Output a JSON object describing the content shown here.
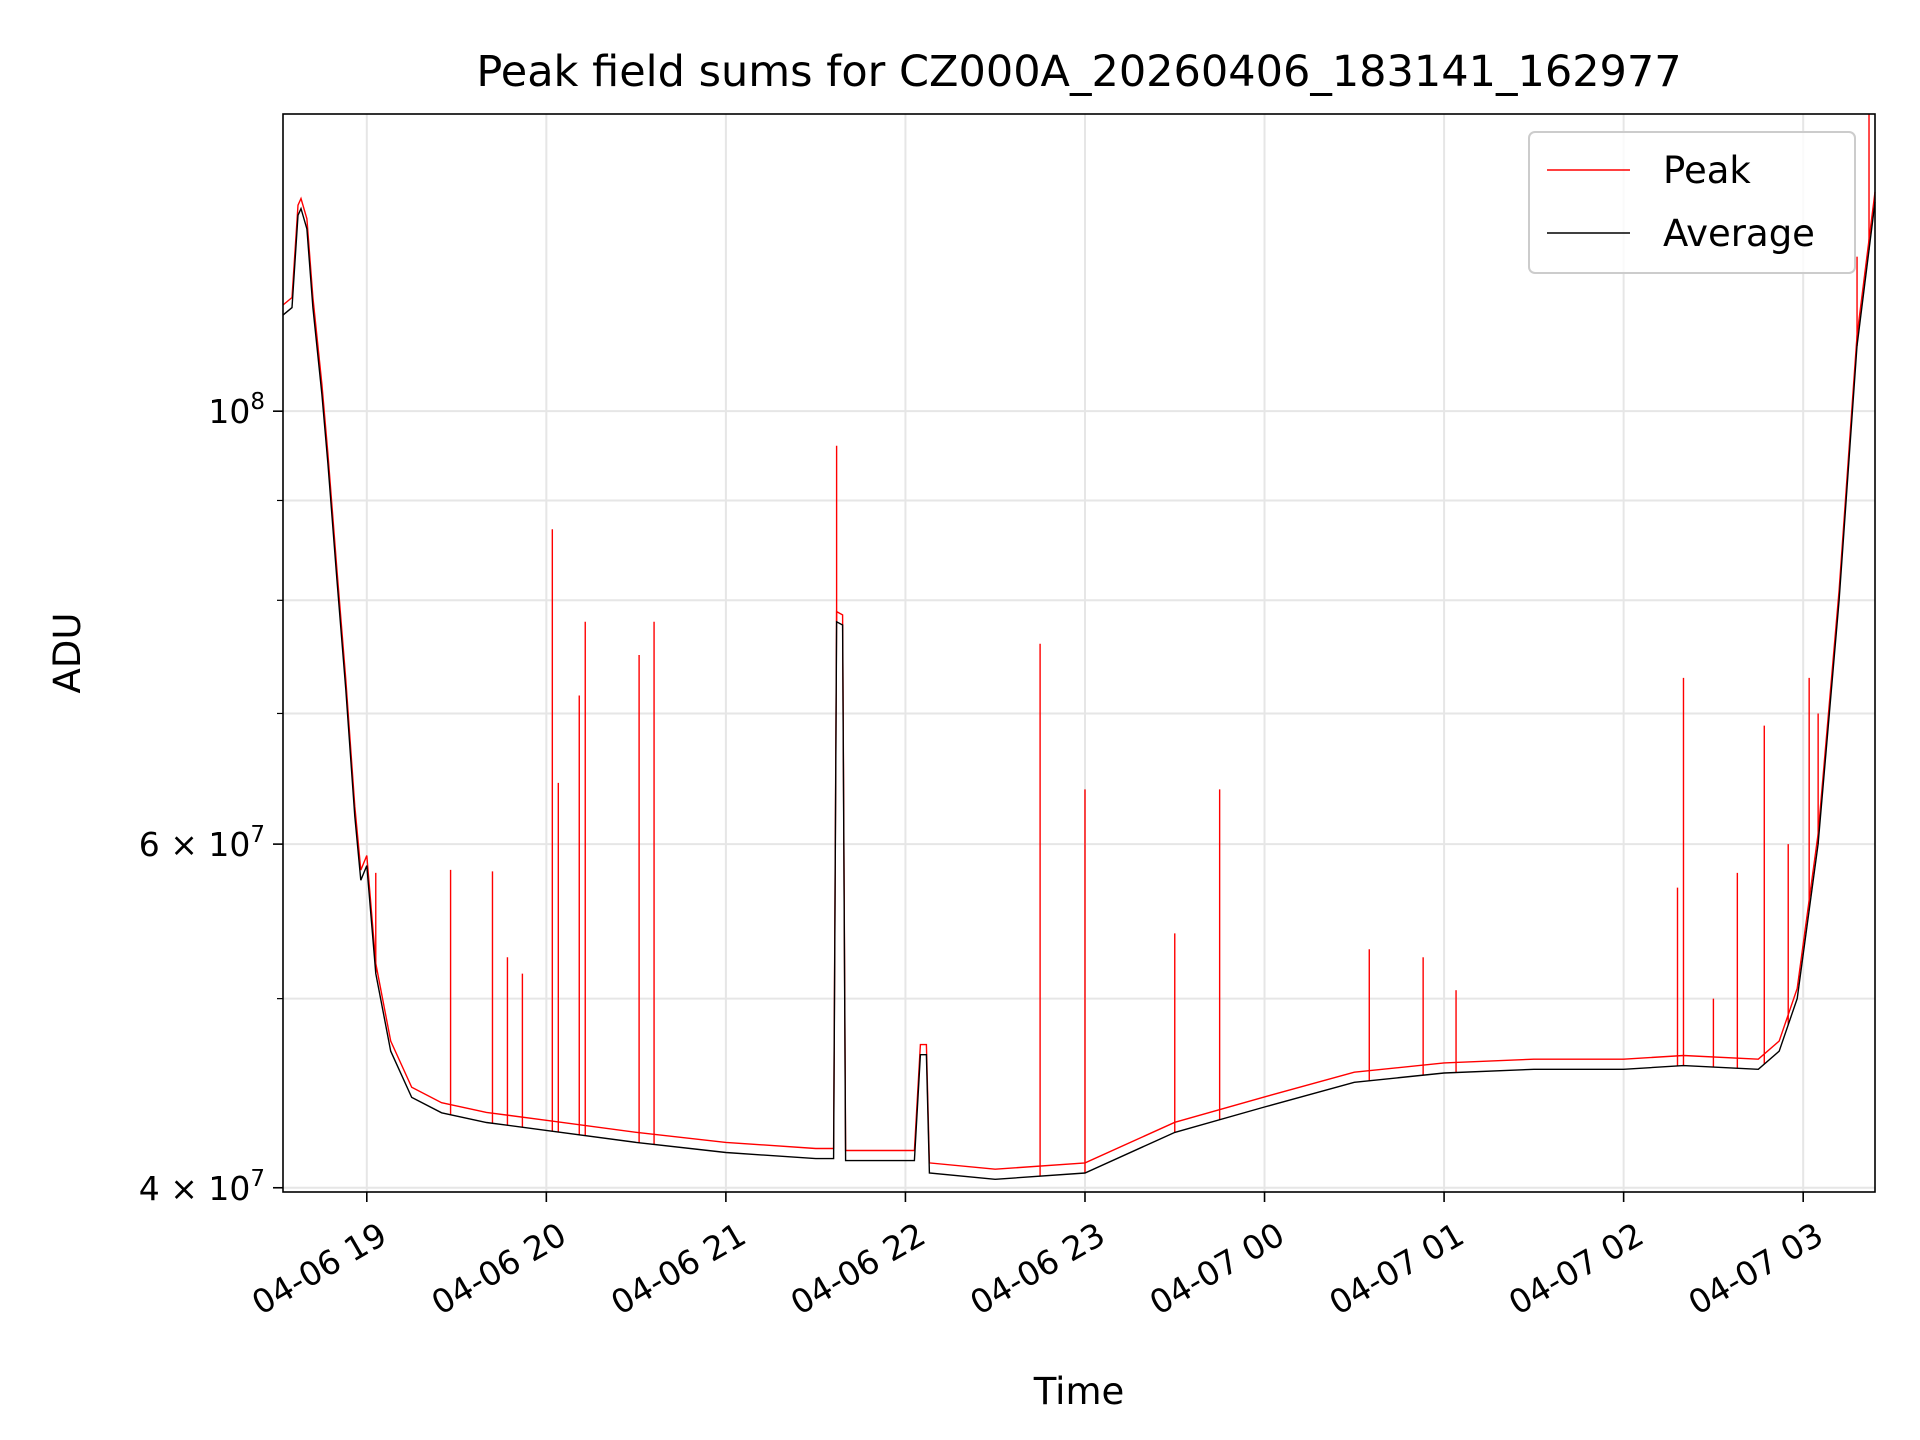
{
  "chart_data": {
    "type": "line",
    "title": "Peak field sums for CZ000A_20260406_183141_162977",
    "xlabel": "Time",
    "ylabel": "ADU",
    "x_axis": "datetime",
    "y_scale": "log",
    "xlim": [
      "2026-04-06 18:32",
      "2026-04-07 03:24"
    ],
    "ylim": [
      39800000,
      142000000
    ],
    "grid": true,
    "legend_position": "upper right",
    "x_ticks": [
      {
        "t": "2026-04-06 19:00",
        "label": "04-06 19"
      },
      {
        "t": "2026-04-06 20:00",
        "label": "04-06 20"
      },
      {
        "t": "2026-04-06 21:00",
        "label": "04-06 21"
      },
      {
        "t": "2026-04-06 22:00",
        "label": "04-06 22"
      },
      {
        "t": "2026-04-06 23:00",
        "label": "04-06 23"
      },
      {
        "t": "2026-04-07 00:00",
        "label": "04-07 00"
      },
      {
        "t": "2026-04-07 01:00",
        "label": "04-07 01"
      },
      {
        "t": "2026-04-07 02:00",
        "label": "04-07 02"
      },
      {
        "t": "2026-04-07 03:00",
        "label": "04-07 03"
      }
    ],
    "y_ticks_major": [
      {
        "value": 40000000,
        "base": "4 × 10",
        "exp": "7"
      },
      {
        "value": 60000000,
        "base": "6 × 10",
        "exp": "7"
      },
      {
        "value": 100000000,
        "base": "10",
        "exp": "8"
      }
    ],
    "y_ticks_minor": [
      50000000,
      70000000,
      80000000,
      90000000
    ],
    "series": [
      {
        "name": "Average",
        "color": "#000000",
        "points": [
          [
            "2026-04-06 18:32",
            112000000
          ],
          [
            "2026-04-06 18:35",
            113000000
          ],
          [
            "2026-04-06 18:37",
            126000000
          ],
          [
            "2026-04-06 18:38",
            127000000
          ],
          [
            "2026-04-06 18:40",
            124000000
          ],
          [
            "2026-04-06 18:42",
            113000000
          ],
          [
            "2026-04-06 18:45",
            102000000
          ],
          [
            "2026-04-06 18:47",
            94000000
          ],
          [
            "2026-04-06 18:50",
            82000000
          ],
          [
            "2026-04-06 18:53",
            72000000
          ],
          [
            "2026-04-06 18:56",
            62000000
          ],
          [
            "2026-04-06 18:58",
            57500000
          ],
          [
            "2026-04-06 19:00",
            58500000
          ],
          [
            "2026-04-06 19:03",
            51500000
          ],
          [
            "2026-04-06 19:08",
            47000000
          ],
          [
            "2026-04-06 19:15",
            44500000
          ],
          [
            "2026-04-06 19:25",
            43700000
          ],
          [
            "2026-04-06 19:40",
            43200000
          ],
          [
            "2026-04-06 20:00",
            42800000
          ],
          [
            "2026-04-06 20:30",
            42200000
          ],
          [
            "2026-04-06 21:00",
            41700000
          ],
          [
            "2026-04-06 21:30",
            41400000
          ],
          [
            "2026-04-06 21:36",
            41400000
          ],
          [
            "2026-04-06 21:37",
            78000000
          ],
          [
            "2026-04-06 21:39",
            77700000
          ],
          [
            "2026-04-06 21:40",
            41300000
          ],
          [
            "2026-04-06 22:03",
            41300000
          ],
          [
            "2026-04-06 22:05",
            46800000
          ],
          [
            "2026-04-06 22:07",
            46800000
          ],
          [
            "2026-04-06 22:08",
            40700000
          ],
          [
            "2026-04-06 22:30",
            40400000
          ],
          [
            "2026-04-06 23:00",
            40700000
          ],
          [
            "2026-04-06 23:30",
            42700000
          ],
          [
            "2026-04-07 00:00",
            44000000
          ],
          [
            "2026-04-07 00:30",
            45300000
          ],
          [
            "2026-04-07 01:00",
            45800000
          ],
          [
            "2026-04-07 01:30",
            46000000
          ],
          [
            "2026-04-07 02:00",
            46000000
          ],
          [
            "2026-04-07 02:20",
            46200000
          ],
          [
            "2026-04-07 02:45",
            46000000
          ],
          [
            "2026-04-07 02:52",
            47000000
          ],
          [
            "2026-04-07 02:58",
            50000000
          ],
          [
            "2026-04-07 03:05",
            60000000
          ],
          [
            "2026-04-07 03:12",
            80000000
          ],
          [
            "2026-04-07 03:18",
            108000000
          ],
          [
            "2026-04-07 03:24",
            128000000
          ]
        ]
      },
      {
        "name": "Peak",
        "color": "#ff0000",
        "spikes": [
          [
            "2026-04-06 19:03",
            58000000
          ],
          [
            "2026-04-06 19:28",
            58200000
          ],
          [
            "2026-04-06 19:42",
            58100000
          ],
          [
            "2026-04-06 19:47",
            52500000
          ],
          [
            "2026-04-06 19:52",
            51500000
          ],
          [
            "2026-04-06 20:02",
            87000000
          ],
          [
            "2026-04-06 20:04",
            64500000
          ],
          [
            "2026-04-06 20:11",
            71500000
          ],
          [
            "2026-04-06 20:13",
            78000000
          ],
          [
            "2026-04-06 20:31",
            75000000
          ],
          [
            "2026-04-06 20:36",
            78000000
          ],
          [
            "2026-04-06 21:37",
            96000000
          ],
          [
            "2026-04-06 22:45",
            76000000
          ],
          [
            "2026-04-06 23:00",
            64000000
          ],
          [
            "2026-04-06 23:30",
            54000000
          ],
          [
            "2026-04-06 23:45",
            64000000
          ],
          [
            "2026-04-07 00:35",
            53000000
          ],
          [
            "2026-04-07 00:53",
            52500000
          ],
          [
            "2026-04-07 01:04",
            50500000
          ],
          [
            "2026-04-07 02:18",
            57000000
          ],
          [
            "2026-04-07 02:20",
            73000000
          ],
          [
            "2026-04-07 02:30",
            50000000
          ],
          [
            "2026-04-07 02:38",
            58000000
          ],
          [
            "2026-04-07 02:47",
            69000000
          ],
          [
            "2026-04-07 02:55",
            60000000
          ],
          [
            "2026-04-07 03:02",
            73000000
          ],
          [
            "2026-04-07 03:05",
            70000000
          ],
          [
            "2026-04-07 03:18",
            120000000
          ],
          [
            "2026-04-07 03:22",
            142000000
          ]
        ]
      }
    ]
  }
}
